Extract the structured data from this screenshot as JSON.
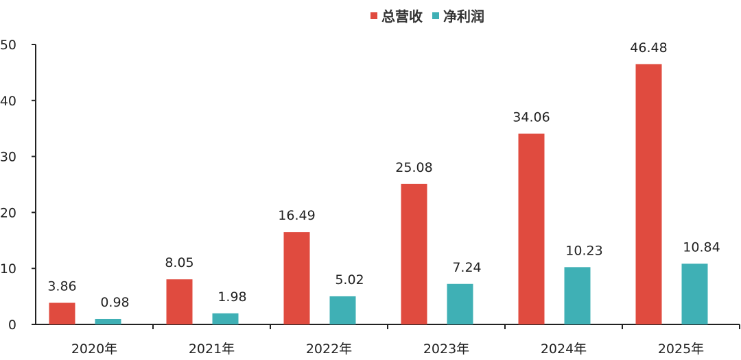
{
  "chart_data": {
    "type": "bar",
    "categories": [
      "2020年",
      "2021年",
      "2022年",
      "2023年",
      "2024年",
      "2025年"
    ],
    "series": [
      {
        "name": "总营收",
        "color": "#e04b3f",
        "values": [
          3.86,
          8.05,
          16.49,
          25.08,
          34.06,
          46.48
        ]
      },
      {
        "name": "净利润",
        "color": "#3fb0b5",
        "values": [
          0.98,
          1.98,
          5.02,
          7.24,
          10.23,
          10.84
        ]
      }
    ],
    "y_ticks": [
      "0",
      "10",
      "20",
      "30",
      "40",
      "50"
    ],
    "ylim": [
      0,
      50
    ],
    "grid": false,
    "legend_position": "top-center",
    "data_labels": true
  }
}
